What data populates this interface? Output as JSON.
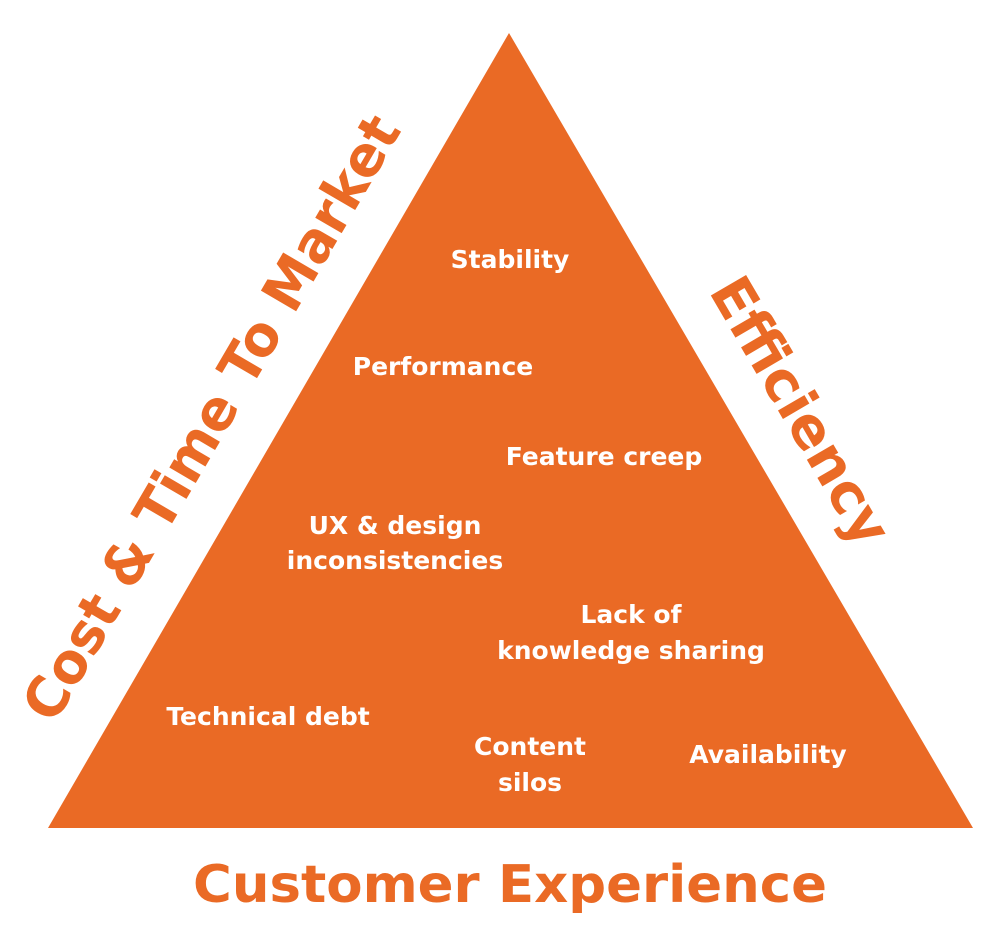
{
  "colors": {
    "accent": "#ea6a25",
    "label_on_accent": "#ffffff",
    "background": "#ffffff"
  },
  "pyramid": {
    "left_side_label": "Cost & Time To Market",
    "right_side_label": "Efficiency",
    "base_label": "Customer Experience",
    "items": {
      "stability": "Stability",
      "performance": "Performance",
      "feature_creep": "Feature creep",
      "ux_line1": "UX & design",
      "ux_line2": "inconsistencies",
      "knowledge_line1": "Lack of",
      "knowledge_line2": "knowledge sharing",
      "technical_debt": "Technical debt",
      "content_line1": "Content",
      "content_line2": "silos",
      "availability": "Availability"
    }
  }
}
